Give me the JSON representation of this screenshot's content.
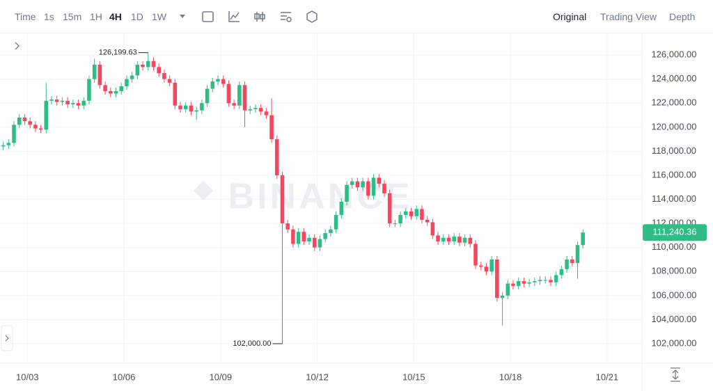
{
  "toolbar": {
    "intervals": [
      "Time",
      "1s",
      "15m",
      "1H",
      "4H",
      "1D",
      "1W"
    ],
    "views": [
      "Original",
      "Trading View",
      "Depth"
    ]
  },
  "chart_data": {
    "type": "candlestick",
    "watermark": "BINANCE",
    "up_color": "#2ebd85",
    "down_color": "#f6465d",
    "grid": true,
    "open": [
      118400,
      118500,
      118700,
      120200,
      120800,
      120500,
      120200,
      119900,
      119800,
      122200,
      122300,
      122100,
      122200,
      121900,
      122000,
      121800,
      122200,
      124000,
      125200,
      123500,
      123000,
      122800,
      123000,
      123400,
      124000,
      124300,
      125200,
      125000,
      125500,
      125000,
      124500,
      124000,
      123700,
      121800,
      121500,
      121800,
      121300,
      121400,
      122000,
      123200,
      123800,
      124000,
      123600,
      122000,
      121800,
      123500,
      121400,
      121500,
      121600,
      121300,
      121000,
      119000,
      116000,
      112000,
      111500,
      110300,
      111300,
      110500,
      110800,
      110000,
      110700,
      111200,
      111500,
      112700,
      113800,
      115200,
      115500,
      115000,
      115500,
      114300,
      115800,
      115300,
      114500,
      112000,
      112000,
      112700,
      113000,
      112600,
      113200,
      112300,
      112100,
      111000,
      110500,
      110800,
      110500,
      110900,
      110400,
      110800,
      110300,
      108500,
      108400,
      108000,
      109000,
      105800,
      106000,
      107000,
      106800,
      107200,
      107000,
      107100,
      107200,
      107300,
      107300,
      107100,
      107700,
      108200,
      109000,
      108700,
      110200
    ],
    "high": [
      118800,
      119000,
      120500,
      121100,
      121100,
      120800,
      120500,
      120200,
      123700,
      122600,
      122600,
      122500,
      122500,
      122300,
      122300,
      122500,
      124300,
      125700,
      125500,
      123800,
      123300,
      123300,
      123700,
      124300,
      124600,
      125500,
      125500,
      126199.63,
      125800,
      125300,
      124800,
      124300,
      124000,
      122100,
      122100,
      122100,
      121700,
      122300,
      123500,
      124100,
      124300,
      124300,
      123900,
      122300,
      123800,
      123800,
      121800,
      121900,
      121900,
      121600,
      122400,
      119300,
      116300,
      112300,
      111800,
      111600,
      111600,
      111100,
      111100,
      111000,
      111500,
      111800,
      113000,
      114100,
      115500,
      115800,
      115800,
      115800,
      115800,
      116100,
      116100,
      115600,
      114800,
      112300,
      113000,
      113300,
      113300,
      113500,
      113500,
      112600,
      112400,
      111300,
      111100,
      111100,
      111200,
      111200,
      111100,
      111100,
      110600,
      108800,
      108700,
      109300,
      109300,
      106300,
      107300,
      107300,
      107500,
      107500,
      107400,
      107500,
      107600,
      107600,
      107600,
      108000,
      108500,
      109300,
      109300,
      110500,
      111500
    ],
    "low": [
      118100,
      118200,
      118400,
      119900,
      120200,
      119900,
      119600,
      119500,
      119500,
      121900,
      121800,
      121800,
      121600,
      121600,
      121500,
      121500,
      121900,
      123700,
      123200,
      122700,
      122500,
      122500,
      122700,
      123100,
      123700,
      124000,
      124700,
      124700,
      124700,
      124200,
      123700,
      123400,
      121500,
      121200,
      121200,
      121000,
      120600,
      121100,
      121700,
      122900,
      123500,
      123300,
      121700,
      121500,
      121500,
      120000,
      121100,
      121200,
      121000,
      120700,
      118700,
      115700,
      102000,
      111200,
      110000,
      110000,
      110200,
      110200,
      109700,
      109700,
      110400,
      110900,
      111200,
      112400,
      113500,
      114900,
      114700,
      114700,
      114000,
      114000,
      115000,
      114200,
      111700,
      111700,
      111700,
      112400,
      112300,
      112300,
      112000,
      111800,
      110700,
      110200,
      110200,
      110200,
      110200,
      110100,
      110100,
      110000,
      108200,
      108100,
      107700,
      107700,
      105500,
      103500,
      105700,
      106500,
      106500,
      106700,
      106700,
      106800,
      106900,
      107000,
      106800,
      106800,
      107400,
      107900,
      108400,
      107400,
      109900
    ],
    "close": [
      118500,
      118700,
      120200,
      120800,
      120500,
      120200,
      119900,
      119800,
      122200,
      122300,
      122100,
      122200,
      121900,
      122000,
      121800,
      122200,
      124000,
      125200,
      123500,
      123000,
      122800,
      123000,
      123400,
      124000,
      124300,
      125200,
      125000,
      125500,
      125000,
      124500,
      124000,
      123700,
      121800,
      121500,
      121800,
      121300,
      121400,
      122000,
      123200,
      123800,
      124000,
      123600,
      122000,
      121800,
      123500,
      121400,
      121500,
      121600,
      121300,
      121000,
      119000,
      116000,
      112000,
      111500,
      110300,
      111300,
      110500,
      110800,
      110000,
      110700,
      111200,
      111500,
      112700,
      113800,
      115200,
      115500,
      115000,
      115500,
      114300,
      115800,
      115300,
      114500,
      112000,
      112000,
      112700,
      113000,
      112600,
      113200,
      112300,
      112100,
      111000,
      110500,
      110800,
      110500,
      110900,
      110400,
      110800,
      110300,
      108500,
      108400,
      108000,
      109000,
      105800,
      106000,
      107000,
      106800,
      107200,
      107000,
      107100,
      107200,
      107300,
      107300,
      107100,
      107700,
      108200,
      109000,
      108700,
      110200,
      111240.36
    ],
    "xlim": [
      -0.6,
      119
    ],
    "xticks": [
      {
        "value": 4.5,
        "label": "10/03"
      },
      {
        "value": 22.5,
        "label": "10/06"
      },
      {
        "value": 40.5,
        "label": "10/09"
      },
      {
        "value": 58.5,
        "label": "10/12"
      },
      {
        "value": 76.5,
        "label": "10/15"
      },
      {
        "value": 94.5,
        "label": "10/18"
      },
      {
        "value": 112.5,
        "label": "10/21"
      }
    ],
    "ylim": [
      100380,
      127800
    ],
    "yticks": [
      {
        "value": 102000,
        "label": "102,000.00"
      },
      {
        "value": 104000,
        "label": "104,000.00"
      },
      {
        "value": 106000,
        "label": "106,000.00"
      },
      {
        "value": 108000,
        "label": "108,000.00"
      },
      {
        "value": 110000,
        "label": "110,000.00"
      },
      {
        "value": 112000,
        "label": "112,000.00"
      },
      {
        "value": 114000,
        "label": "114,000.00"
      },
      {
        "value": 116000,
        "label": "116,000.00"
      },
      {
        "value": 118000,
        "label": "118,000.00"
      },
      {
        "value": 120000,
        "label": "120,000.00"
      },
      {
        "value": 122000,
        "label": "122,000.00"
      },
      {
        "value": 124000,
        "label": "124,000.00"
      },
      {
        "value": 126000,
        "label": "126,000.00"
      }
    ],
    "annotations": [
      {
        "value": 126199.63,
        "label": "126,199.63"
      },
      {
        "value": 102000,
        "label": "102,000.00"
      }
    ],
    "last_price": {
      "value": 111240.36,
      "label": "111,240.36"
    }
  }
}
